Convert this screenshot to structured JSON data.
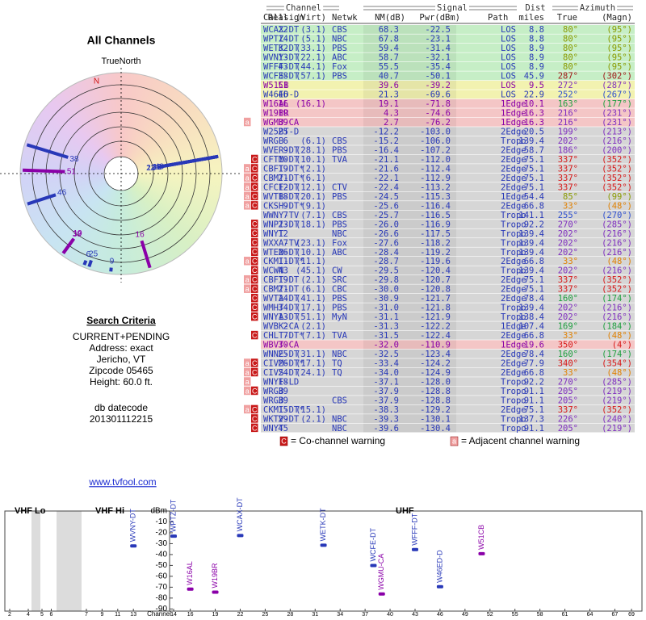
{
  "radar": {
    "title": "All Channels",
    "north": "TrueNorth",
    "n": "N"
  },
  "criteria": {
    "title": "Search Criteria",
    "lines": [
      "CURRENT+PENDING",
      "Address: exact",
      "Jericho, VT",
      "Zipcode 05465",
      "Height: 60.0 ft."
    ],
    "datecode_label": "db datecode",
    "datecode": "201301112215"
  },
  "link": "www.tvfool.com",
  "table": {
    "groups": [
      "Channel",
      "Signal",
      "Dist",
      "Azimuth"
    ],
    "columns": [
      "Callsign",
      "Real",
      "(Virt)",
      "Netwk",
      "NM(dB)",
      "Pwr(dBm)",
      "Path",
      "miles",
      "True",
      "(Magn)"
    ],
    "rows": [
      {
        "callsign": "WCAX-DT",
        "real": "22",
        "virt": "(3.1)",
        "netwk": "CBS",
        "nm": "68.3",
        "pwr": "-22.5",
        "path": "LOS",
        "dist": "8.8",
        "az": "80°",
        "magn": "(95°)",
        "flags": [],
        "bg": "#c6eec6",
        "color": "#2838b8"
      },
      {
        "callsign": "WPTZ-DT",
        "real": "14",
        "virt": "(5.1)",
        "netwk": "NBC",
        "nm": "67.8",
        "pwr": "-23.1",
        "path": "LOS",
        "dist": "8.8",
        "az": "80°",
        "magn": "(95°)",
        "flags": [],
        "bg": "#c6eec6",
        "color": "#2838b8"
      },
      {
        "callsign": "WETK-DT",
        "real": "32",
        "virt": "(33.1)",
        "netwk": "PBS",
        "nm": "59.4",
        "pwr": "-31.4",
        "path": "LOS",
        "dist": "8.9",
        "az": "80°",
        "magn": "(95°)",
        "flags": [],
        "bg": "#c6eec6",
        "color": "#2838b8"
      },
      {
        "callsign": "WVNY-DT",
        "real": "13",
        "virt": "(22.1)",
        "netwk": "ABC",
        "nm": "58.7",
        "pwr": "-32.1",
        "path": "LOS",
        "dist": "8.9",
        "az": "80°",
        "magn": "(95°)",
        "flags": [],
        "bg": "#c6eec6",
        "color": "#2838b8"
      },
      {
        "callsign": "WFFF-DT",
        "real": "43",
        "virt": "(44.1)",
        "netwk": "Fox",
        "nm": "55.5",
        "pwr": "-35.4",
        "path": "LOS",
        "dist": "8.9",
        "az": "80°",
        "magn": "(95°)",
        "flags": [],
        "bg": "#c6eec6",
        "color": "#2838b8"
      },
      {
        "callsign": "WCFE-DT",
        "real": "38",
        "virt": "(57.1)",
        "netwk": "PBS",
        "nm": "40.7",
        "pwr": "-50.1",
        "path": "LOS",
        "dist": "45.9",
        "az": "287°",
        "magn": "(302°)",
        "flags": [],
        "bg": "#c6eec6",
        "color": "#2838b8"
      },
      {
        "callsign": "W51CB",
        "real": "51",
        "nm": "39.6",
        "pwr": "-39.2",
        "path": "LOS",
        "dist": "9.5",
        "az": "272°",
        "magn": "(287°)",
        "flags": [],
        "bg": "#f2f2b0",
        "color": "#8a00a8"
      },
      {
        "callsign": "W46ED-D",
        "real": "46",
        "nm": "21.3",
        "pwr": "-69.6",
        "path": "LOS",
        "dist": "22.9",
        "az": "252°",
        "magn": "(267°)",
        "flags": [],
        "bg": "#f2f2b0",
        "color": "#2838b8"
      },
      {
        "callsign": "W16AL",
        "real": "16",
        "virt": "(16.1)",
        "nm": "19.1",
        "pwr": "-71.8",
        "path": "1Edge",
        "dist": "10.1",
        "az": "163°",
        "magn": "(177°)",
        "flags": [],
        "bg": "#f4c6c6",
        "color": "#8a00a8"
      },
      {
        "callsign": "W19BR",
        "real": "19",
        "nm": "4.3",
        "pwr": "-74.6",
        "path": "1Edge",
        "dist": "16.3",
        "az": "216°",
        "magn": "(231°)",
        "flags": [],
        "bg": "#f4c6c6",
        "color": "#8a00a8"
      },
      {
        "callsign": "WGMU-CA",
        "real": "39",
        "nm": "2.7",
        "pwr": "-76.2",
        "path": "1Edge",
        "dist": "16.3",
        "az": "216°",
        "magn": "(231°)",
        "flags": [
          "a"
        ],
        "bg": "#f4c6c6",
        "color": "#8a00a8"
      },
      {
        "callsign": "W25BT-D",
        "real": "25",
        "nm": "-12.2",
        "pwr": "-103.0",
        "path": "2Edge",
        "dist": "20.5",
        "az": "199°",
        "magn": "(213°)",
        "flags": [],
        "bg": "#d6d6d6",
        "color": "#2838b8"
      },
      {
        "callsign": "WRGB",
        "real": "6",
        "virt": "(6.1)",
        "netwk": "CBS",
        "nm": "-15.2",
        "pwr": "-106.0",
        "path": "Tropo",
        "dist": "139.4",
        "az": "202°",
        "magn": "(216°)",
        "flags": [],
        "bg": "#d6d6d6",
        "color": "#2838b8"
      },
      {
        "callsign": "WVER-DT",
        "real": "9",
        "virt": "(28.1)",
        "netwk": "PBS",
        "nm": "-16.4",
        "pwr": "-107.2",
        "path": "2Edge",
        "dist": "58.7",
        "az": "186°",
        "magn": "(200°)",
        "flags": [],
        "bg": "#d6d6d6",
        "color": "#2838b8"
      },
      {
        "callsign": "CFTM-DT",
        "real": "10",
        "virt": "(10.1)",
        "netwk": "TVA",
        "nm": "-21.1",
        "pwr": "-112.0",
        "path": "2Edge",
        "dist": "75.1",
        "az": "337°",
        "magn": "(352°)",
        "flags": [
          "C"
        ],
        "bg": "#d6d6d6",
        "color": "#2838b8"
      },
      {
        "callsign": "CBFT-DT*",
        "real": "19",
        "virt": "(2.1)",
        "nm": "-21.6",
        "pwr": "-112.4",
        "path": "2Edge",
        "dist": "75.1",
        "az": "337°",
        "magn": "(352°)",
        "flags": [
          "a",
          "C"
        ],
        "bg": "#d6d6d6",
        "color": "#2838b8"
      },
      {
        "callsign": "CBMT-DT*",
        "real": "21",
        "virt": "(6.1)",
        "nm": "-22.1",
        "pwr": "-112.9",
        "path": "2Edge",
        "dist": "75.1",
        "az": "337°",
        "magn": "(352°)",
        "flags": [
          "a",
          "C"
        ],
        "bg": "#d6d6d6",
        "color": "#2838b8"
      },
      {
        "callsign": "CFCF-DT",
        "real": "12",
        "virt": "(12.1)",
        "netwk": "CTV",
        "nm": "-22.4",
        "pwr": "-113.2",
        "path": "2Edge",
        "dist": "75.1",
        "az": "337°",
        "magn": "(352°)",
        "flags": [
          "a",
          "C"
        ],
        "bg": "#d6d6d6",
        "color": "#2838b8"
      },
      {
        "callsign": "WVTB-DT",
        "real": "18",
        "virt": "(20.1)",
        "netwk": "PBS",
        "nm": "-24.5",
        "pwr": "-115.3",
        "path": "1Edge",
        "dist": "54.4",
        "az": "85°",
        "magn": "(99°)",
        "flags": [
          "a",
          "C"
        ],
        "bg": "#d6d6d6",
        "color": "#2838b8"
      },
      {
        "callsign": "CKSH-DT*",
        "real": "9",
        "virt": "(9.1)",
        "nm": "-25.6",
        "pwr": "-116.4",
        "path": "2Edge",
        "dist": "66.8",
        "az": "33°",
        "magn": "(48°)",
        "flags": [
          "a",
          "C"
        ],
        "bg": "#d6d6d6",
        "color": "#2838b8"
      },
      {
        "callsign": "WWNY-TV",
        "real": "7",
        "virt": "(7.1)",
        "netwk": "CBS",
        "nm": "-25.7",
        "pwr": "-116.5",
        "path": "Tropo",
        "dist": "141.1",
        "az": "255°",
        "magn": "(270°)",
        "flags": [],
        "bg": "#d6d6d6",
        "color": "#2838b8"
      },
      {
        "callsign": "WNPI-DT",
        "real": "23",
        "virt": "(18.1)",
        "netwk": "PBS",
        "nm": "-26.0",
        "pwr": "-116.9",
        "path": "Tropo",
        "dist": "92.2",
        "az": "270°",
        "magn": "(285°)",
        "flags": [
          "C"
        ],
        "bg": "#d6d6d6",
        "color": "#2838b8"
      },
      {
        "callsign": "WNYT",
        "real": "12",
        "netwk": "NBC",
        "nm": "-26.6",
        "pwr": "-117.5",
        "path": "Tropo",
        "dist": "139.4",
        "az": "202°",
        "magn": "(216°)",
        "flags": [
          "C"
        ],
        "bg": "#d6d6d6",
        "color": "#2838b8"
      },
      {
        "callsign": "WXXA-TV",
        "real": "7",
        "virt": "(23.1)",
        "netwk": "Fox",
        "nm": "-27.6",
        "pwr": "-118.2",
        "path": "Tropo",
        "dist": "139.4",
        "az": "202°",
        "magn": "(216°)",
        "flags": [
          "C"
        ],
        "bg": "#d6d6d6",
        "color": "#2838b8"
      },
      {
        "callsign": "WTEN-DT",
        "real": "26",
        "virt": "(10.1)",
        "netwk": "ABC",
        "nm": "-28.4",
        "pwr": "-119.2",
        "path": "Tropo",
        "dist": "139.4",
        "az": "202°",
        "magn": "(216°)",
        "flags": [
          "C"
        ],
        "bg": "#d6d6d6",
        "color": "#2838b8"
      },
      {
        "callsign": "CKMI-DT*",
        "real": "11",
        "virt": "(11.1)",
        "nm": "-28.7",
        "pwr": "-119.6",
        "path": "2Edge",
        "dist": "66.8",
        "az": "33°",
        "magn": "(48°)",
        "flags": [
          "a",
          "C"
        ],
        "bg": "#d6d6d6",
        "color": "#2838b8"
      },
      {
        "callsign": "WCWN",
        "real": "43",
        "virt": "(45.1)",
        "netwk": "CW",
        "nm": "-29.5",
        "pwr": "-120.4",
        "path": "Tropo",
        "dist": "139.4",
        "az": "202°",
        "magn": "(216°)",
        "flags": [
          "C"
        ],
        "bg": "#d6d6d6",
        "color": "#2838b8"
      },
      {
        "callsign": "CBFT-DT",
        "real": "19",
        "virt": "(2.1)",
        "netwk": "SRC",
        "nm": "-29.8",
        "pwr": "-120.7",
        "path": "2Edge",
        "dist": "75.1",
        "az": "337°",
        "magn": "(352°)",
        "flags": [
          "a",
          "C"
        ],
        "bg": "#d6d6d6",
        "color": "#2838b8"
      },
      {
        "callsign": "CBMT-DT",
        "real": "21",
        "virt": "(6.1)",
        "netwk": "CBC",
        "nm": "-30.0",
        "pwr": "-120.8",
        "path": "2Edge",
        "dist": "75.1",
        "az": "337°",
        "magn": "(352°)",
        "flags": [
          "a",
          "C"
        ],
        "bg": "#d6d6d6",
        "color": "#2838b8"
      },
      {
        "callsign": "WVTA-DT",
        "real": "24",
        "virt": "(41.1)",
        "netwk": "PBS",
        "nm": "-30.9",
        "pwr": "-121.7",
        "path": "2Edge",
        "dist": "78.4",
        "az": "160°",
        "magn": "(174°)",
        "flags": [
          "C"
        ],
        "bg": "#d6d6d6",
        "color": "#2838b8"
      },
      {
        "callsign": "WMHT-DT",
        "real": "34",
        "virt": "(17.1)",
        "netwk": "PBS",
        "nm": "-31.0",
        "pwr": "-121.8",
        "path": "Tropo",
        "dist": "139.4",
        "az": "202°",
        "magn": "(216°)",
        "flags": [
          "C"
        ],
        "bg": "#d6d6d6",
        "color": "#2838b8"
      },
      {
        "callsign": "WNYA-DT",
        "real": "13",
        "virt": "(51.1)",
        "netwk": "MyN",
        "nm": "-31.1",
        "pwr": "-121.9",
        "path": "Tropo",
        "dist": "138.4",
        "az": "202°",
        "magn": "(216°)",
        "flags": [
          "C"
        ],
        "bg": "#d6d6d6",
        "color": "#2838b8"
      },
      {
        "callsign": "WVBK-CA",
        "real": "2",
        "virt": "(2.1)",
        "nm": "-31.3",
        "pwr": "-122.2",
        "path": "1Edge",
        "dist": "107.4",
        "az": "169°",
        "magn": "(184°)",
        "flags": [],
        "bg": "#d6d6d6",
        "color": "#2838b8"
      },
      {
        "callsign": "CHLT-DT*",
        "real": "7",
        "virt": "(7.1)",
        "netwk": "TVA",
        "nm": "-31.5",
        "pwr": "-122.4",
        "path": "2Edge",
        "dist": "66.8",
        "az": "33°",
        "magn": "(48°)",
        "flags": [
          "C"
        ],
        "bg": "#d6d6d6",
        "color": "#2838b8"
      },
      {
        "callsign": "WBVT-CA",
        "real": "30",
        "nm": "-32.0",
        "pwr": "-110.9",
        "path": "1Edge",
        "dist": "19.6",
        "az": "350°",
        "magn": "(4°)",
        "flags": [],
        "bg": "#f4c6c6",
        "color": "#8a00a8"
      },
      {
        "callsign": "WNNE-DT",
        "real": "25",
        "virt": "(31.1)",
        "netwk": "NBC",
        "nm": "-32.5",
        "pwr": "-123.4",
        "path": "2Edge",
        "dist": "78.4",
        "az": "160°",
        "magn": "(174°)",
        "flags": [],
        "bg": "#d6d6d6",
        "color": "#2838b8"
      },
      {
        "callsign": "CIVM-DT*",
        "real": "26",
        "virt": "(17.1)",
        "netwk": "TQ",
        "nm": "-33.4",
        "pwr": "-124.2",
        "path": "2Edge",
        "dist": "77.9",
        "az": "340°",
        "magn": "(354°)",
        "flags": [
          "a",
          "C"
        ],
        "bg": "#d6d6d6",
        "color": "#2838b8"
      },
      {
        "callsign": "CIVS-DT",
        "real": "24",
        "virt": "(24.1)",
        "netwk": "TQ",
        "nm": "-34.0",
        "pwr": "-124.9",
        "path": "2Edge",
        "dist": "66.8",
        "az": "33°",
        "magn": "(48°)",
        "flags": [
          "a",
          "C"
        ],
        "bg": "#d6d6d6",
        "color": "#2838b8"
      },
      {
        "callsign": "WNYF-LD",
        "real": "18",
        "nm": "-37.1",
        "pwr": "-128.0",
        "path": "Tropo",
        "dist": "92.2",
        "az": "270°",
        "magn": "(285°)",
        "flags": [
          "a"
        ],
        "bg": "#d6d6d6",
        "color": "#2838b8"
      },
      {
        "callsign": "WRGB",
        "real": "39",
        "nm": "-37.9",
        "pwr": "-128.8",
        "path": "Tropo",
        "dist": "91.1",
        "az": "205°",
        "magn": "(219°)",
        "flags": [
          "a",
          "C"
        ],
        "bg": "#d6d6d6",
        "color": "#2838b8"
      },
      {
        "callsign": "WRGB",
        "real": "39",
        "netwk": "CBS",
        "nm": "-37.9",
        "pwr": "-128.8",
        "path": "Tropo",
        "dist": "91.1",
        "az": "205°",
        "magn": "(219°)",
        "flags": [],
        "bg": "#d6d6d6",
        "color": "#2838b8"
      },
      {
        "callsign": "CKMI-DT*",
        "real": "15",
        "virt": "(15.1)",
        "nm": "-38.3",
        "pwr": "-129.2",
        "path": "2Edge",
        "dist": "75.1",
        "az": "337°",
        "magn": "(352°)",
        "flags": [
          "a",
          "C"
        ],
        "bg": "#d6d6d6",
        "color": "#2838b8"
      },
      {
        "callsign": "WKTV-DT",
        "real": "29",
        "virt": "(2.1)",
        "netwk": "NBC",
        "nm": "-39.3",
        "pwr": "-130.1",
        "path": "Tropo",
        "dist": "137.3",
        "az": "226°",
        "magn": "(240°)",
        "flags": [
          "C"
        ],
        "bg": "#d6d6d6",
        "color": "#2838b8"
      },
      {
        "callsign": "WNYT",
        "real": "45",
        "netwk": "NBC",
        "nm": "-39.6",
        "pwr": "-130.4",
        "path": "Tropo",
        "dist": "91.1",
        "az": "205°",
        "magn": "(219°)",
        "flags": [
          "C"
        ],
        "bg": "#d6d6d6",
        "color": "#2838b8"
      }
    ]
  },
  "legend": [
    {
      "flag": "C",
      "text": "= Co-channel warning",
      "color": "#c81818"
    },
    {
      "flag": "a",
      "text": "= Adjacent channel warning",
      "color": "#f0a0a0"
    }
  ],
  "spectrum": {
    "sections": [
      "VHF Lo",
      "VHF Hi",
      "UHF"
    ],
    "xlabel": "Channel",
    "ylabel": "dBm",
    "xticks": [
      2,
      4,
      5,
      6,
      7,
      9,
      11,
      13,
      14,
      16,
      19,
      22,
      25,
      28,
      31,
      34,
      37,
      40,
      43,
      46,
      49,
      52,
      55,
      58,
      61,
      64,
      67,
      69
    ],
    "ylim": [
      -92,
      0
    ],
    "yticks": [
      -10,
      -20,
      -30,
      -40,
      -50,
      -60,
      -70,
      -80,
      -90
    ]
  }
}
